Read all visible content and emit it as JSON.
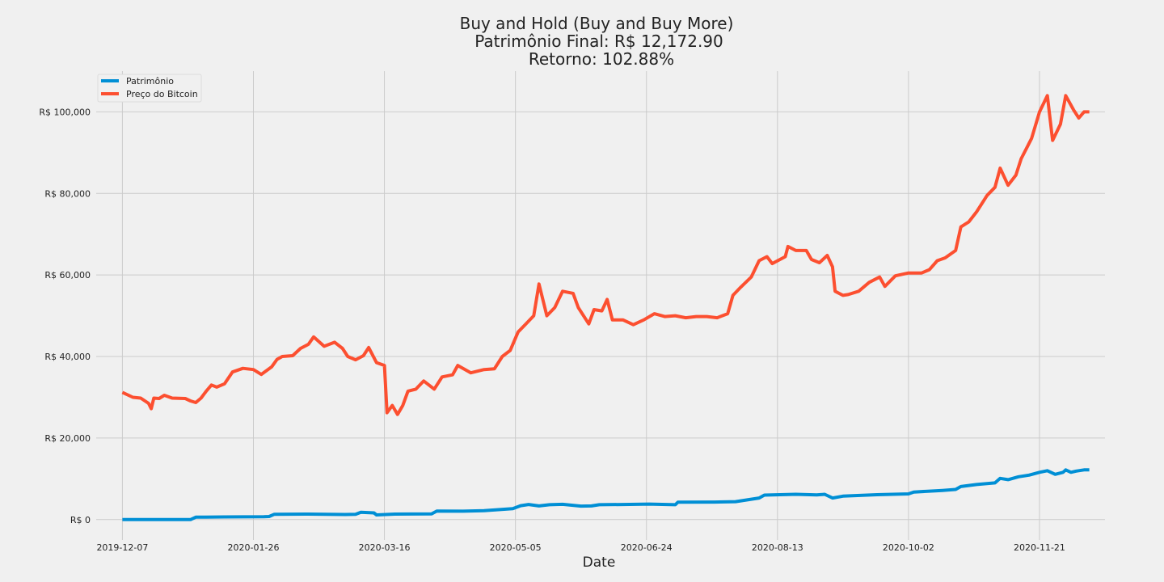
{
  "chart_data": {
    "type": "line",
    "title": [
      "Buy and Hold (Buy and Buy More)",
      "Patrimônio Final: R$ 12,172.90",
      "Retorno: 102.88%"
    ],
    "xlabel": "Date",
    "ylabel": "",
    "grid": true,
    "legend_position": "top-left",
    "xlim": [
      "2019-11-27",
      "2020-12-16"
    ],
    "ylim": [
      -5000,
      110000
    ],
    "x_ticks": [
      "2019-12-07",
      "2020-01-26",
      "2020-03-16",
      "2020-05-05",
      "2020-06-24",
      "2020-08-13",
      "2020-10-02",
      "2020-11-21"
    ],
    "y_ticks": [
      0,
      20000,
      40000,
      60000,
      80000,
      100000
    ],
    "y_tick_labels": [
      "R$ 0",
      "R$ 20,000",
      "R$ 40,000",
      "R$ 60,000",
      "R$ 80,000",
      "R$ 100,000"
    ],
    "series": [
      {
        "name": "Patrimônio",
        "color": "#008fd5",
        "points": [
          [
            "2019-12-07",
            0
          ],
          [
            "2020-01-02",
            0
          ],
          [
            "2020-01-04",
            600
          ],
          [
            "2020-01-15",
            650
          ],
          [
            "2020-01-30",
            700
          ],
          [
            "2020-02-01",
            750
          ],
          [
            "2020-02-03",
            1300
          ],
          [
            "2020-02-15",
            1350
          ],
          [
            "2020-03-01",
            1250
          ],
          [
            "2020-03-05",
            1300
          ],
          [
            "2020-03-07",
            1800
          ],
          [
            "2020-03-12",
            1650
          ],
          [
            "2020-03-13",
            1150
          ],
          [
            "2020-03-20",
            1350
          ],
          [
            "2020-04-03",
            1400
          ],
          [
            "2020-04-05",
            2100
          ],
          [
            "2020-04-15",
            2050
          ],
          [
            "2020-04-23",
            2200
          ],
          [
            "2020-05-04",
            2700
          ],
          [
            "2020-05-07",
            3400
          ],
          [
            "2020-05-10",
            3700
          ],
          [
            "2020-05-14",
            3350
          ],
          [
            "2020-05-18",
            3650
          ],
          [
            "2020-05-23",
            3750
          ],
          [
            "2020-05-30",
            3300
          ],
          [
            "2020-06-03",
            3350
          ],
          [
            "2020-06-06",
            3650
          ],
          [
            "2020-06-15",
            3700
          ],
          [
            "2020-06-25",
            3800
          ],
          [
            "2020-07-05",
            3650
          ],
          [
            "2020-07-06",
            4250
          ],
          [
            "2020-07-20",
            4300
          ],
          [
            "2020-07-28",
            4400
          ],
          [
            "2020-08-06",
            5300
          ],
          [
            "2020-08-08",
            6000
          ],
          [
            "2020-08-20",
            6200
          ],
          [
            "2020-08-28",
            6050
          ],
          [
            "2020-08-31",
            6200
          ],
          [
            "2020-09-03",
            5300
          ],
          [
            "2020-09-07",
            5750
          ],
          [
            "2020-09-20",
            6100
          ],
          [
            "2020-10-02",
            6300
          ],
          [
            "2020-10-04",
            6750
          ],
          [
            "2020-10-15",
            7150
          ],
          [
            "2020-10-20",
            7400
          ],
          [
            "2020-10-22",
            8100
          ],
          [
            "2020-10-28",
            8600
          ],
          [
            "2020-11-04",
            9000
          ],
          [
            "2020-11-06",
            10100
          ],
          [
            "2020-11-09",
            9800
          ],
          [
            "2020-11-13",
            10500
          ],
          [
            "2020-11-17",
            10900
          ],
          [
            "2020-11-21",
            11600
          ],
          [
            "2020-11-24",
            12000
          ],
          [
            "2020-11-27",
            11100
          ],
          [
            "2020-11-30",
            11600
          ],
          [
            "2020-12-01",
            12200
          ],
          [
            "2020-12-03",
            11600
          ],
          [
            "2020-12-05",
            11900
          ],
          [
            "2020-12-08",
            12200
          ],
          [
            "2020-12-10",
            12200
          ]
        ]
      },
      {
        "name": "Preço do Bitcoin",
        "color": "#fc4f30",
        "points": [
          [
            "2019-12-07",
            31200
          ],
          [
            "2019-12-11",
            30000
          ],
          [
            "2019-12-14",
            29800
          ],
          [
            "2019-12-17",
            28500
          ],
          [
            "2019-12-18",
            27200
          ],
          [
            "2019-12-19",
            29800
          ],
          [
            "2019-12-21",
            29700
          ],
          [
            "2019-12-23",
            30500
          ],
          [
            "2019-12-26",
            29800
          ],
          [
            "2019-12-31",
            29700
          ],
          [
            "2020-01-02",
            29100
          ],
          [
            "2020-01-04",
            28700
          ],
          [
            "2020-01-06",
            29800
          ],
          [
            "2020-01-08",
            31500
          ],
          [
            "2020-01-10",
            33000
          ],
          [
            "2020-01-12",
            32500
          ],
          [
            "2020-01-15",
            33300
          ],
          [
            "2020-01-18",
            36200
          ],
          [
            "2020-01-22",
            37100
          ],
          [
            "2020-01-26",
            36800
          ],
          [
            "2020-01-29",
            35600
          ],
          [
            "2020-02-02",
            37500
          ],
          [
            "2020-02-04",
            39300
          ],
          [
            "2020-02-06",
            40000
          ],
          [
            "2020-02-10",
            40200
          ],
          [
            "2020-02-13",
            42000
          ],
          [
            "2020-02-16",
            43000
          ],
          [
            "2020-02-18",
            44800
          ],
          [
            "2020-02-22",
            42500
          ],
          [
            "2020-02-26",
            43500
          ],
          [
            "2020-02-29",
            42000
          ],
          [
            "2020-03-02",
            40000
          ],
          [
            "2020-03-05",
            39200
          ],
          [
            "2020-03-08",
            40200
          ],
          [
            "2020-03-10",
            42200
          ],
          [
            "2020-03-13",
            38500
          ],
          [
            "2020-03-16",
            37800
          ],
          [
            "2020-03-17",
            26200
          ],
          [
            "2020-03-19",
            28000
          ],
          [
            "2020-03-21",
            25800
          ],
          [
            "2020-03-23",
            28000
          ],
          [
            "2020-03-25",
            31500
          ],
          [
            "2020-03-28",
            32000
          ],
          [
            "2020-03-31",
            34000
          ],
          [
            "2020-04-04",
            32000
          ],
          [
            "2020-04-07",
            35000
          ],
          [
            "2020-04-11",
            35500
          ],
          [
            "2020-04-13",
            37800
          ],
          [
            "2020-04-18",
            36000
          ],
          [
            "2020-04-23",
            36800
          ],
          [
            "2020-04-27",
            37000
          ],
          [
            "2020-04-30",
            40000
          ],
          [
            "2020-05-03",
            41500
          ],
          [
            "2020-05-06",
            46000
          ],
          [
            "2020-05-09",
            48000
          ],
          [
            "2020-05-12",
            50000
          ],
          [
            "2020-05-14",
            57800
          ],
          [
            "2020-05-17",
            50000
          ],
          [
            "2020-05-20",
            52000
          ],
          [
            "2020-05-23",
            56000
          ],
          [
            "2020-05-27",
            55500
          ],
          [
            "2020-05-29",
            52000
          ],
          [
            "2020-06-02",
            48000
          ],
          [
            "2020-06-04",
            51500
          ],
          [
            "2020-06-07",
            51200
          ],
          [
            "2020-06-09",
            54000
          ],
          [
            "2020-06-11",
            49000
          ],
          [
            "2020-06-15",
            49000
          ],
          [
            "2020-06-19",
            47800
          ],
          [
            "2020-06-23",
            49000
          ],
          [
            "2020-06-27",
            50500
          ],
          [
            "2020-07-01",
            49800
          ],
          [
            "2020-07-05",
            50000
          ],
          [
            "2020-07-09",
            49500
          ],
          [
            "2020-07-13",
            49800
          ],
          [
            "2020-07-17",
            49800
          ],
          [
            "2020-07-21",
            49500
          ],
          [
            "2020-07-25",
            50500
          ],
          [
            "2020-07-27",
            55000
          ],
          [
            "2020-07-30",
            57000
          ],
          [
            "2020-08-03",
            59500
          ],
          [
            "2020-08-06",
            63500
          ],
          [
            "2020-08-09",
            64500
          ],
          [
            "2020-08-11",
            62800
          ],
          [
            "2020-08-16",
            64500
          ],
          [
            "2020-08-17",
            67000
          ],
          [
            "2020-08-20",
            66000
          ],
          [
            "2020-08-24",
            66000
          ],
          [
            "2020-08-26",
            63800
          ],
          [
            "2020-08-29",
            63000
          ],
          [
            "2020-09-01",
            64800
          ],
          [
            "2020-09-03",
            62000
          ],
          [
            "2020-09-04",
            56000
          ],
          [
            "2020-09-07",
            55000
          ],
          [
            "2020-09-09",
            55200
          ],
          [
            "2020-09-13",
            56000
          ],
          [
            "2020-09-17",
            58200
          ],
          [
            "2020-09-21",
            59500
          ],
          [
            "2020-09-23",
            57200
          ],
          [
            "2020-09-27",
            59800
          ],
          [
            "2020-10-02",
            60500
          ],
          [
            "2020-10-07",
            60500
          ],
          [
            "2020-10-10",
            61300
          ],
          [
            "2020-10-13",
            63500
          ],
          [
            "2020-10-16",
            64200
          ],
          [
            "2020-10-20",
            66000
          ],
          [
            "2020-10-22",
            71800
          ],
          [
            "2020-10-25",
            73000
          ],
          [
            "2020-10-28",
            75500
          ],
          [
            "2020-11-01",
            79500
          ],
          [
            "2020-11-04",
            81500
          ],
          [
            "2020-11-06",
            86200
          ],
          [
            "2020-11-09",
            82000
          ],
          [
            "2020-11-12",
            84500
          ],
          [
            "2020-11-14",
            88500
          ],
          [
            "2020-11-18",
            93500
          ],
          [
            "2020-11-21",
            100000
          ],
          [
            "2020-11-24",
            104000
          ],
          [
            "2020-11-26",
            93000
          ],
          [
            "2020-11-29",
            97000
          ],
          [
            "2020-12-01",
            104000
          ],
          [
            "2020-12-04",
            100500
          ],
          [
            "2020-12-06",
            98500
          ],
          [
            "2020-12-08",
            100000
          ],
          [
            "2020-12-10",
            100000
          ]
        ]
      }
    ]
  }
}
